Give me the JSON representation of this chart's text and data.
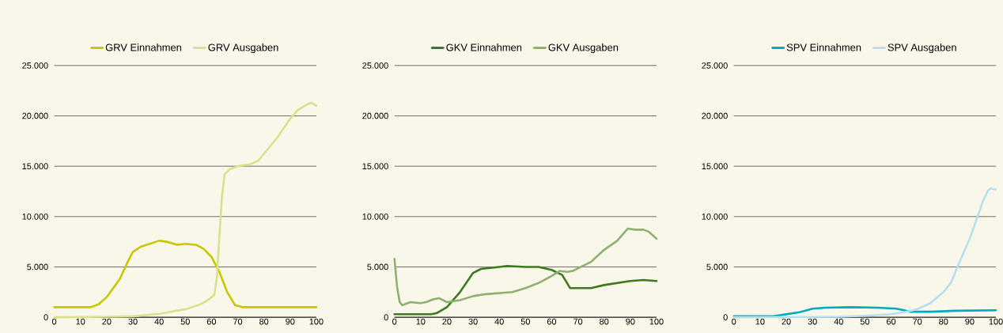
{
  "chart_data": [
    {
      "type": "line",
      "xlim": [
        0,
        100
      ],
      "ylim": [
        0,
        25000
      ],
      "xticks": [
        0,
        10,
        20,
        30,
        40,
        50,
        60,
        70,
        80,
        90,
        100
      ],
      "yticks": [
        0,
        {
          "value": 5000,
          "label": "5.000"
        },
        {
          "value": 10000,
          "label": "10.000"
        },
        {
          "value": 15000,
          "label": "15.000"
        },
        {
          "value": 20000,
          "label": "20.000"
        },
        {
          "value": 25000,
          "label": "25.000"
        }
      ],
      "grid": "y",
      "legend": "top",
      "marker": "none",
      "line_style": "solid",
      "series": [
        {
          "name": "GRV Einnahmen",
          "color": "#c8c800",
          "x": [
            0,
            10,
            14,
            17,
            20,
            25,
            28,
            30,
            33,
            40,
            43,
            47,
            50,
            54,
            57,
            60,
            63,
            66,
            69,
            72,
            100
          ],
          "values": [
            1000,
            1000,
            1000,
            1300,
            2000,
            3800,
            5500,
            6500,
            7000,
            7600,
            7500,
            7200,
            7300,
            7200,
            6800,
            6000,
            4500,
            2500,
            1200,
            1000,
            1000
          ]
        },
        {
          "name": "GRV Ausgaben",
          "color": "#dde08a",
          "x": [
            0,
            20,
            30,
            40,
            50,
            55,
            58,
            61,
            62,
            63,
            64,
            65,
            67,
            70,
            75,
            78,
            85,
            90,
            93,
            97,
            98,
            100
          ],
          "values": [
            0,
            50,
            100,
            350,
            800,
            1200,
            1600,
            2200,
            3800,
            8000,
            12000,
            14200,
            14700,
            15000,
            15200,
            15600,
            17800,
            19700,
            20600,
            21200,
            21300,
            21000
          ]
        }
      ]
    },
    {
      "type": "line",
      "xlim": [
        0,
        100
      ],
      "ylim": [
        0,
        25000
      ],
      "xticks": [
        0,
        10,
        20,
        30,
        40,
        50,
        60,
        70,
        80,
        90,
        100
      ],
      "yticks": [
        0,
        {
          "value": 5000,
          "label": "5.000"
        },
        {
          "value": 10000,
          "label": "10.000"
        },
        {
          "value": 15000,
          "label": "15.000"
        },
        {
          "value": 20000,
          "label": "20.000"
        },
        {
          "value": 25000,
          "label": "25.000"
        }
      ],
      "grid": "y",
      "legend": "top",
      "marker": "none",
      "line_style": "solid",
      "series": [
        {
          "name": "GKV Einnahmen",
          "color": "#3d7a1e",
          "x": [
            0,
            14,
            16,
            20,
            25,
            30,
            33,
            40,
            43,
            50,
            55,
            60,
            64,
            67,
            75,
            80,
            90,
            95,
            100
          ],
          "values": [
            300,
            300,
            400,
            1000,
            2500,
            4400,
            4800,
            5000,
            5100,
            5000,
            5000,
            4700,
            4200,
            2900,
            2900,
            3200,
            3600,
            3700,
            3600
          ]
        },
        {
          "name": "GKV Ausgaben",
          "color": "#8fb070",
          "x": [
            0,
            1,
            2,
            3,
            6,
            10,
            12,
            15,
            17,
            20,
            25,
            30,
            35,
            45,
            50,
            55,
            60,
            63,
            66,
            68,
            75,
            80,
            85,
            89,
            92,
            95,
            97,
            100
          ],
          "values": [
            5800,
            3000,
            1500,
            1200,
            1500,
            1400,
            1500,
            1800,
            1900,
            1500,
            1700,
            2100,
            2300,
            2500,
            2900,
            3400,
            4100,
            4600,
            4500,
            4600,
            5500,
            6700,
            7600,
            8800,
            8700,
            8700,
            8500,
            7800
          ]
        }
      ]
    },
    {
      "type": "line",
      "xlim": [
        0,
        100
      ],
      "ylim": [
        0,
        25000
      ],
      "xticks": [
        0,
        10,
        20,
        30,
        40,
        50,
        60,
        70,
        80,
        90,
        100
      ],
      "yticks": [
        0,
        {
          "value": 5000,
          "label": "5.000"
        },
        {
          "value": 10000,
          "label": "10.000"
        },
        {
          "value": 15000,
          "label": "15.000"
        },
        {
          "value": 20000,
          "label": "20.000"
        },
        {
          "value": 25000,
          "label": "25.000"
        }
      ],
      "grid": "y",
      "legend": "top",
      "marker": "none",
      "line_style": "solid",
      "series": [
        {
          "name": "SPV Einnahmen",
          "color": "#00a9c4",
          "x": [
            0,
            15,
            20,
            25,
            30,
            35,
            45,
            55,
            62,
            65,
            67,
            75,
            85,
            100
          ],
          "values": [
            100,
            100,
            300,
            500,
            850,
            950,
            1000,
            950,
            850,
            700,
            550,
            550,
            650,
            700
          ]
        },
        {
          "name": "SPV Ausgaben",
          "color": "#b5e0ec",
          "x": [
            0,
            40,
            50,
            60,
            65,
            70,
            75,
            80,
            83,
            85,
            90,
            93,
            95,
            97,
            98,
            100
          ],
          "values": [
            0,
            50,
            150,
            300,
            500,
            800,
            1400,
            2500,
            3500,
            4800,
            7800,
            10000,
            11500,
            12600,
            12800,
            12700
          ]
        }
      ]
    }
  ]
}
